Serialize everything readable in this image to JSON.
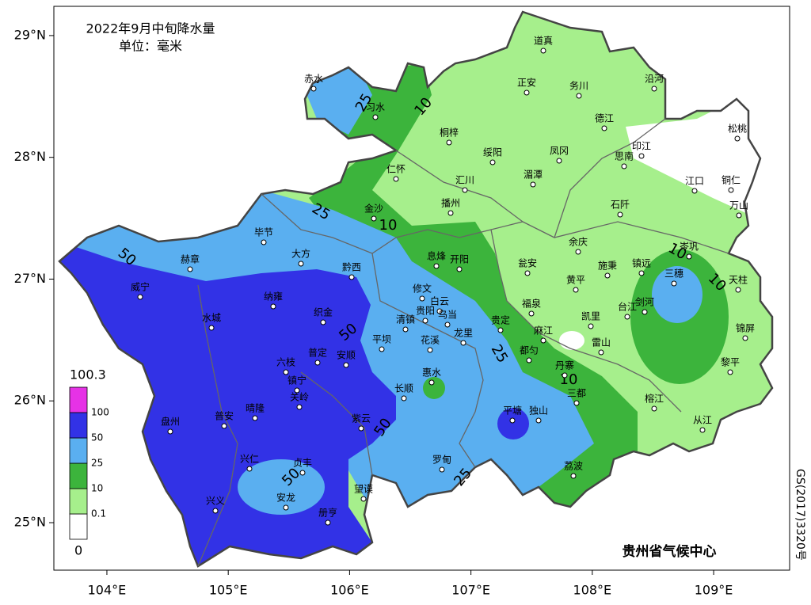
{
  "map": {
    "title": "2022年9月中旬降水量",
    "unit": "单位：毫米",
    "xlim": [
      103.563,
      109.626
    ],
    "ylim": [
      24.61,
      29.24
    ],
    "xticks": [
      {
        "value": 104,
        "label": "104°E"
      },
      {
        "value": 105,
        "label": "105°E"
      },
      {
        "value": 106,
        "label": "106°E"
      },
      {
        "value": 107,
        "label": "107°E"
      },
      {
        "value": 108,
        "label": "108°E"
      },
      {
        "value": 109,
        "label": "109°E"
      }
    ],
    "yticks": [
      {
        "value": 25,
        "label": "25°N"
      },
      {
        "value": 26,
        "label": "26°N"
      },
      {
        "value": 27,
        "label": "27°N"
      },
      {
        "value": 28,
        "label": "28°N"
      },
      {
        "value": 29,
        "label": "29°N"
      }
    ],
    "legend": {
      "levels": [
        0,
        0.1,
        10,
        25,
        50,
        100,
        100.3
      ],
      "colors": [
        "#ffffff",
        "#a6ef8c",
        "#3cb43c",
        "#5aaff0",
        "#3232e6",
        "#e632e6"
      ]
    },
    "contour_labels": [
      25,
      10,
      25,
      10,
      50,
      10,
      10,
      50,
      25,
      10,
      50,
      50,
      25
    ],
    "stations": [
      "赤水",
      "习水",
      "道真",
      "正安",
      "务川",
      "沿河",
      "德江",
      "桐梓",
      "绥阳",
      "凤冈",
      "思南",
      "印江",
      "松桃",
      "仁怀",
      "汇川",
      "湄潭",
      "江口",
      "铜仁",
      "金沙",
      "播州",
      "石阡",
      "万山",
      "毕节",
      "大方",
      "黔西",
      "息烽",
      "开阳",
      "瓮安",
      "余庆",
      "施秉",
      "镇远",
      "岑巩",
      "三穗",
      "天柱",
      "赫章",
      "威宁",
      "纳雍",
      "织金",
      "修文",
      "白云",
      "乌当",
      "清镇",
      "贵阳",
      "花溪",
      "龙里",
      "贵定",
      "黄平",
      "福泉",
      "凯里",
      "台江",
      "剑河",
      "麻江",
      "雷山",
      "锦屏",
      "水城",
      "平坝",
      "普定",
      "安顺",
      "都匀",
      "黎平",
      "六枝",
      "镇宁",
      "关岭",
      "长顺",
      "惠水",
      "丹寨",
      "三都",
      "榕江",
      "平塘",
      "独山",
      "盘州",
      "普安",
      "晴隆",
      "紫云",
      "从江",
      "兴仁",
      "贞丰",
      "罗甸",
      "荔波",
      "安龙",
      "望谟",
      "兴义",
      "册亨"
    ],
    "credit": "贵州省气候中心",
    "approval_number": "GS(2017)3320号"
  }
}
